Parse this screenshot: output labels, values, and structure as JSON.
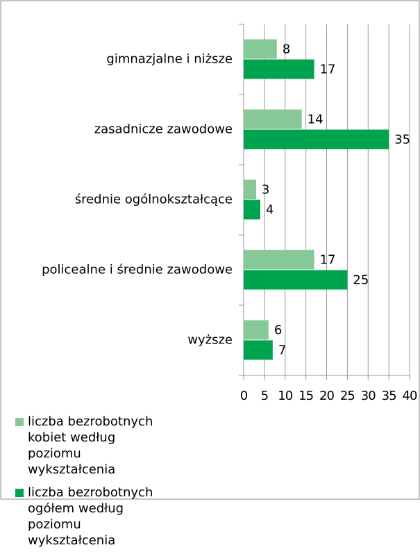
{
  "chart_data": {
    "type": "bar",
    "orientation": "horizontal",
    "categories": [
      "gimnazjalne i niższe",
      "zasadnicze zawodowe",
      "średnie ogólnokształcące",
      "policealne i średnie zawodowe",
      "wyższe"
    ],
    "series": [
      {
        "name": "liczba bezrobotnych kobiet według poziomu wykształcenia",
        "color": "#86c897",
        "values": [
          8,
          14,
          3,
          17,
          6
        ]
      },
      {
        "name": "liczba bezrobotnych ogółem według poziomu wykształcenia",
        "color": "#00a44f",
        "values": [
          17,
          35,
          4,
          25,
          7
        ]
      }
    ],
    "xlim": [
      0,
      40
    ],
    "xticks": [
      0,
      5,
      10,
      15,
      20,
      25,
      30,
      35,
      40
    ],
    "grid": true,
    "legend": "bottom-left"
  }
}
